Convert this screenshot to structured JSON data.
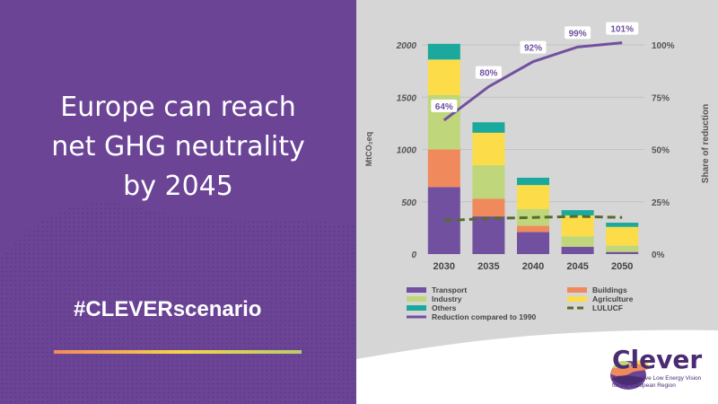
{
  "headline": {
    "line1": "Europe can reach",
    "line2": "net GHG neutrality",
    "line3": "by 2045"
  },
  "hashtag": "#CLEVERscenario",
  "logo": {
    "name": "Clever",
    "tagline_line1": "A Collaborative Low Energy Vision",
    "tagline_line2": "for the European Region"
  },
  "colors": {
    "panel_purple": "#6b4496",
    "transport": "#7150a0",
    "buildings": "#f08a5d",
    "industry": "#bfd77a",
    "agriculture": "#fcdc48",
    "others": "#1aa99c",
    "lulucf": "#556b2f",
    "reduction": "#7150a0"
  },
  "chart_data": {
    "type": "bar",
    "stacked": true,
    "categories": [
      "2030",
      "2035",
      "2040",
      "2045",
      "2050"
    ],
    "ylabel": "MtCO₂eq",
    "y2label": "Share of reduction",
    "ylim": [
      0,
      2000
    ],
    "y_ticks": [
      "0",
      "500",
      "1000",
      "1500",
      "2000"
    ],
    "y2lim": [
      0,
      100
    ],
    "y2_ticks": [
      "0%",
      "25%",
      "50%",
      "75%",
      "100%"
    ],
    "grid": true,
    "legend_position": "bottom",
    "series": [
      {
        "name": "Transport",
        "color": "#7150a0",
        "values": [
          640,
          360,
          210,
          70,
          20
        ]
      },
      {
        "name": "Buildings",
        "color": "#f08a5d",
        "values": [
          360,
          170,
          60,
          0,
          0
        ]
      },
      {
        "name": "Industry",
        "color": "#bfd77a",
        "values": [
          520,
          320,
          160,
          100,
          60
        ]
      },
      {
        "name": "Agriculture",
        "color": "#fcdc48",
        "values": [
          340,
          310,
          230,
          200,
          180
        ]
      },
      {
        "name": "Others",
        "color": "#1aa99c",
        "values": [
          150,
          100,
          70,
          50,
          40
        ]
      }
    ],
    "lulucf": {
      "name": "LULUCF",
      "color": "#556b2f",
      "values": [
        320,
        340,
        350,
        360,
        350
      ]
    },
    "reduction": {
      "name": "Reduction compared to 1990",
      "color": "#7150a0",
      "values": [
        64,
        80,
        92,
        99,
        101
      ],
      "labels": [
        "64%",
        "80%",
        "92%",
        "99%",
        "101%"
      ]
    },
    "legend": [
      {
        "label": "Transport",
        "color": "#7150a0",
        "kind": "bar"
      },
      {
        "label": "Buildings",
        "color": "#f08a5d",
        "kind": "bar"
      },
      {
        "label": "Industry",
        "color": "#bfd77a",
        "kind": "bar"
      },
      {
        "label": "Agriculture",
        "color": "#fcdc48",
        "kind": "bar"
      },
      {
        "label": "Others",
        "color": "#1aa99c",
        "kind": "bar"
      },
      {
        "label": "LULUCF",
        "color": "#556b2f",
        "kind": "dash"
      },
      {
        "label": "Reduction compared to 1990",
        "color": "#7150a0",
        "kind": "line"
      }
    ]
  }
}
